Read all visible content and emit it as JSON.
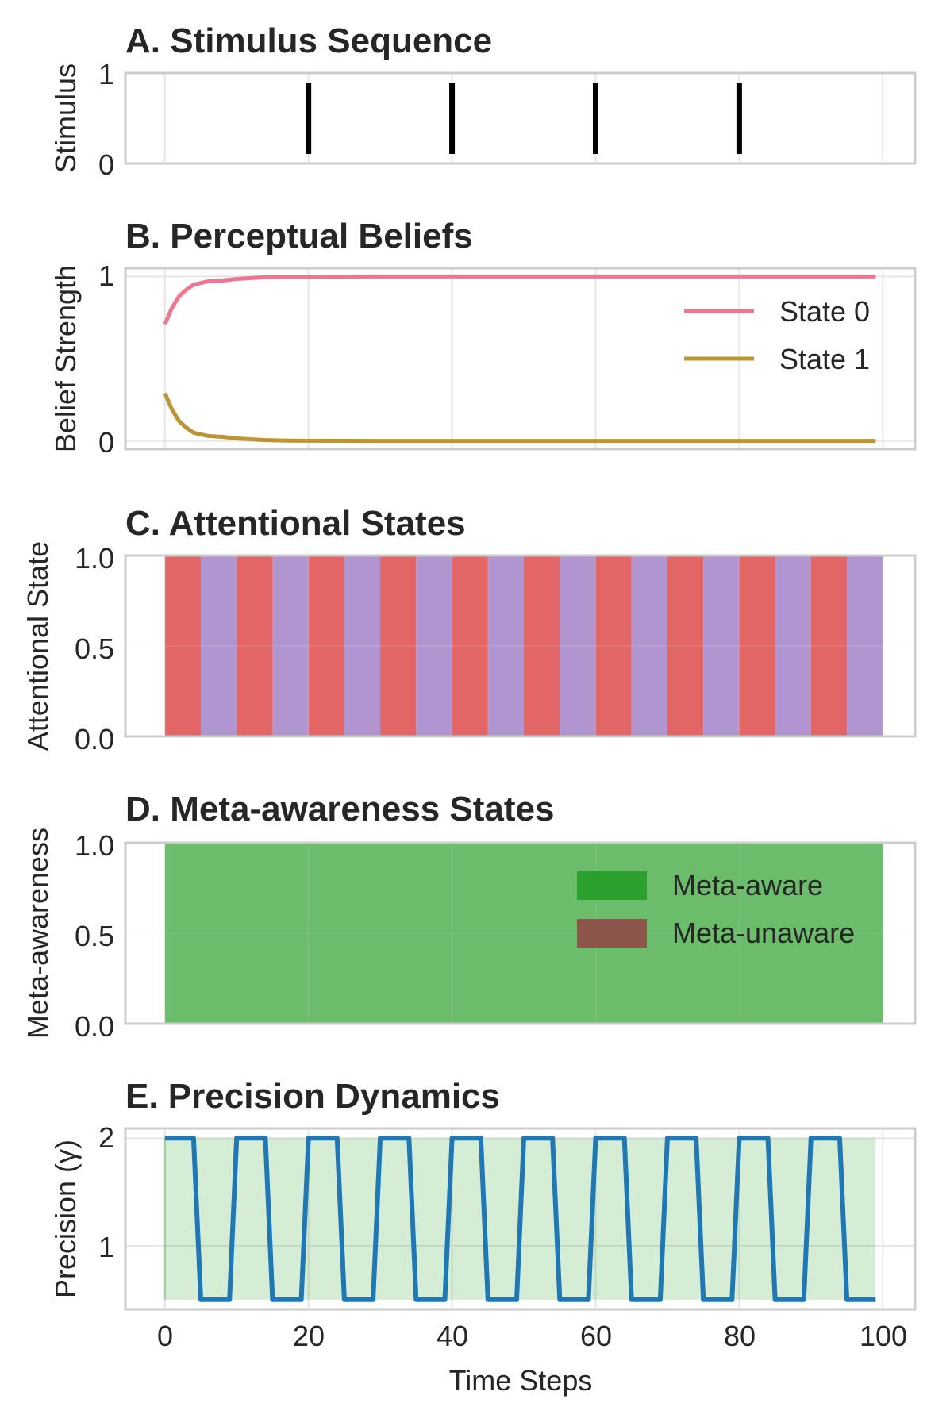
{
  "colors": {
    "stimulus": "#000000",
    "state0": "#f07690",
    "state1": "#bc9434",
    "focused": "#dd4444",
    "mind_wandering": "#a283c8",
    "meta_aware": "#2ca02c",
    "meta_unaware": "#8c564b",
    "precision": "#1f77b4",
    "precision_shade": "#2ca02c",
    "grid": "#e6e6e6",
    "frame": "#cccccc"
  },
  "chart_data": [
    {
      "type": "bar",
      "title": "A. Stimulus Sequence",
      "ylabel": "Stimulus",
      "xlim": [
        -5.5,
        104.5
      ],
      "ylim": [
        0,
        1
      ],
      "yticks": [
        "0",
        "1"
      ],
      "stimulus_times": [
        20,
        40,
        60,
        80
      ],
      "stimulus_value": 1,
      "grid": true
    },
    {
      "type": "line",
      "title": "B. Perceptual Beliefs",
      "ylabel": "Belief Strength",
      "xlim": [
        -5.5,
        104.5
      ],
      "ylim": [
        -0.05,
        1.05
      ],
      "yticks": [
        "0",
        "1"
      ],
      "legend": "right",
      "series": [
        {
          "name": "State 0",
          "x": [
            0,
            1,
            2,
            3,
            4,
            5,
            6,
            8,
            10,
            12,
            14,
            17,
            20,
            30,
            99
          ],
          "values": [
            0.71,
            0.81,
            0.88,
            0.92,
            0.95,
            0.96,
            0.97,
            0.975,
            0.985,
            0.99,
            0.995,
            0.998,
            0.999,
            1.0,
            1.0
          ]
        },
        {
          "name": "State 1",
          "x": [
            0,
            1,
            2,
            3,
            4,
            5,
            6,
            8,
            10,
            12,
            14,
            17,
            20,
            30,
            99
          ],
          "values": [
            0.29,
            0.19,
            0.12,
            0.08,
            0.05,
            0.04,
            0.03,
            0.025,
            0.015,
            0.01,
            0.005,
            0.002,
            0.001,
            0.0,
            0.0
          ]
        }
      ],
      "grid": true
    },
    {
      "type": "area",
      "title": "C. Attentional States",
      "ylabel": "Attentional State",
      "xlim": [
        -5.5,
        104.5
      ],
      "ylim": [
        0,
        1
      ],
      "yticks": [
        "0.0",
        "0.5",
        "1.0"
      ],
      "block_length": 5,
      "blocks": [
        "focused",
        "wandering",
        "focused",
        "wandering",
        "focused",
        "wandering",
        "focused",
        "wandering",
        "focused",
        "wandering",
        "focused",
        "wandering",
        "focused",
        "wandering",
        "focused",
        "wandering",
        "focused",
        "wandering",
        "focused",
        "wandering"
      ],
      "grid": true
    },
    {
      "type": "area",
      "title": "D. Meta-awareness States",
      "ylabel": "Meta-awareness",
      "xlim": [
        -5.5,
        104.5
      ],
      "ylim": [
        0,
        1
      ],
      "yticks": [
        "0.0",
        "0.5",
        "1.0"
      ],
      "legend": "right",
      "series": [
        {
          "name": "Meta-aware",
          "x_range": [
            0,
            100
          ]
        },
        {
          "name": "Meta-unaware",
          "x_range": []
        }
      ],
      "grid": true
    },
    {
      "type": "line",
      "title": "E. Precision Dynamics",
      "ylabel": "Precision (γ)",
      "xlabel": "Time Steps",
      "xlim": [
        -5.5,
        104.5
      ],
      "ylim": [
        0.41,
        2.09
      ],
      "xticks": [
        "0",
        "20",
        "40",
        "60",
        "80",
        "100"
      ],
      "yticks": [
        "1",
        "2"
      ],
      "high": 2.0,
      "low": 0.5,
      "period": 10,
      "x_end": 99,
      "shade_range": [
        0,
        99
      ],
      "grid": true
    }
  ]
}
